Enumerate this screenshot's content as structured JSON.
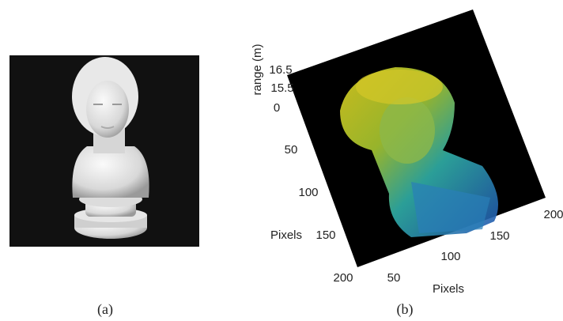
{
  "panel_a": {
    "caption": "(a)"
  },
  "panel_b": {
    "caption": "(b)",
    "z_label": "range (m)",
    "z_ticks": [
      16.5,
      15.5
    ],
    "y_label": "Pixels",
    "y_ticks": [
      0,
      50,
      100,
      150,
      200
    ],
    "x_label": "Pixels",
    "x_ticks": [
      50,
      100,
      150,
      200
    ]
  }
}
